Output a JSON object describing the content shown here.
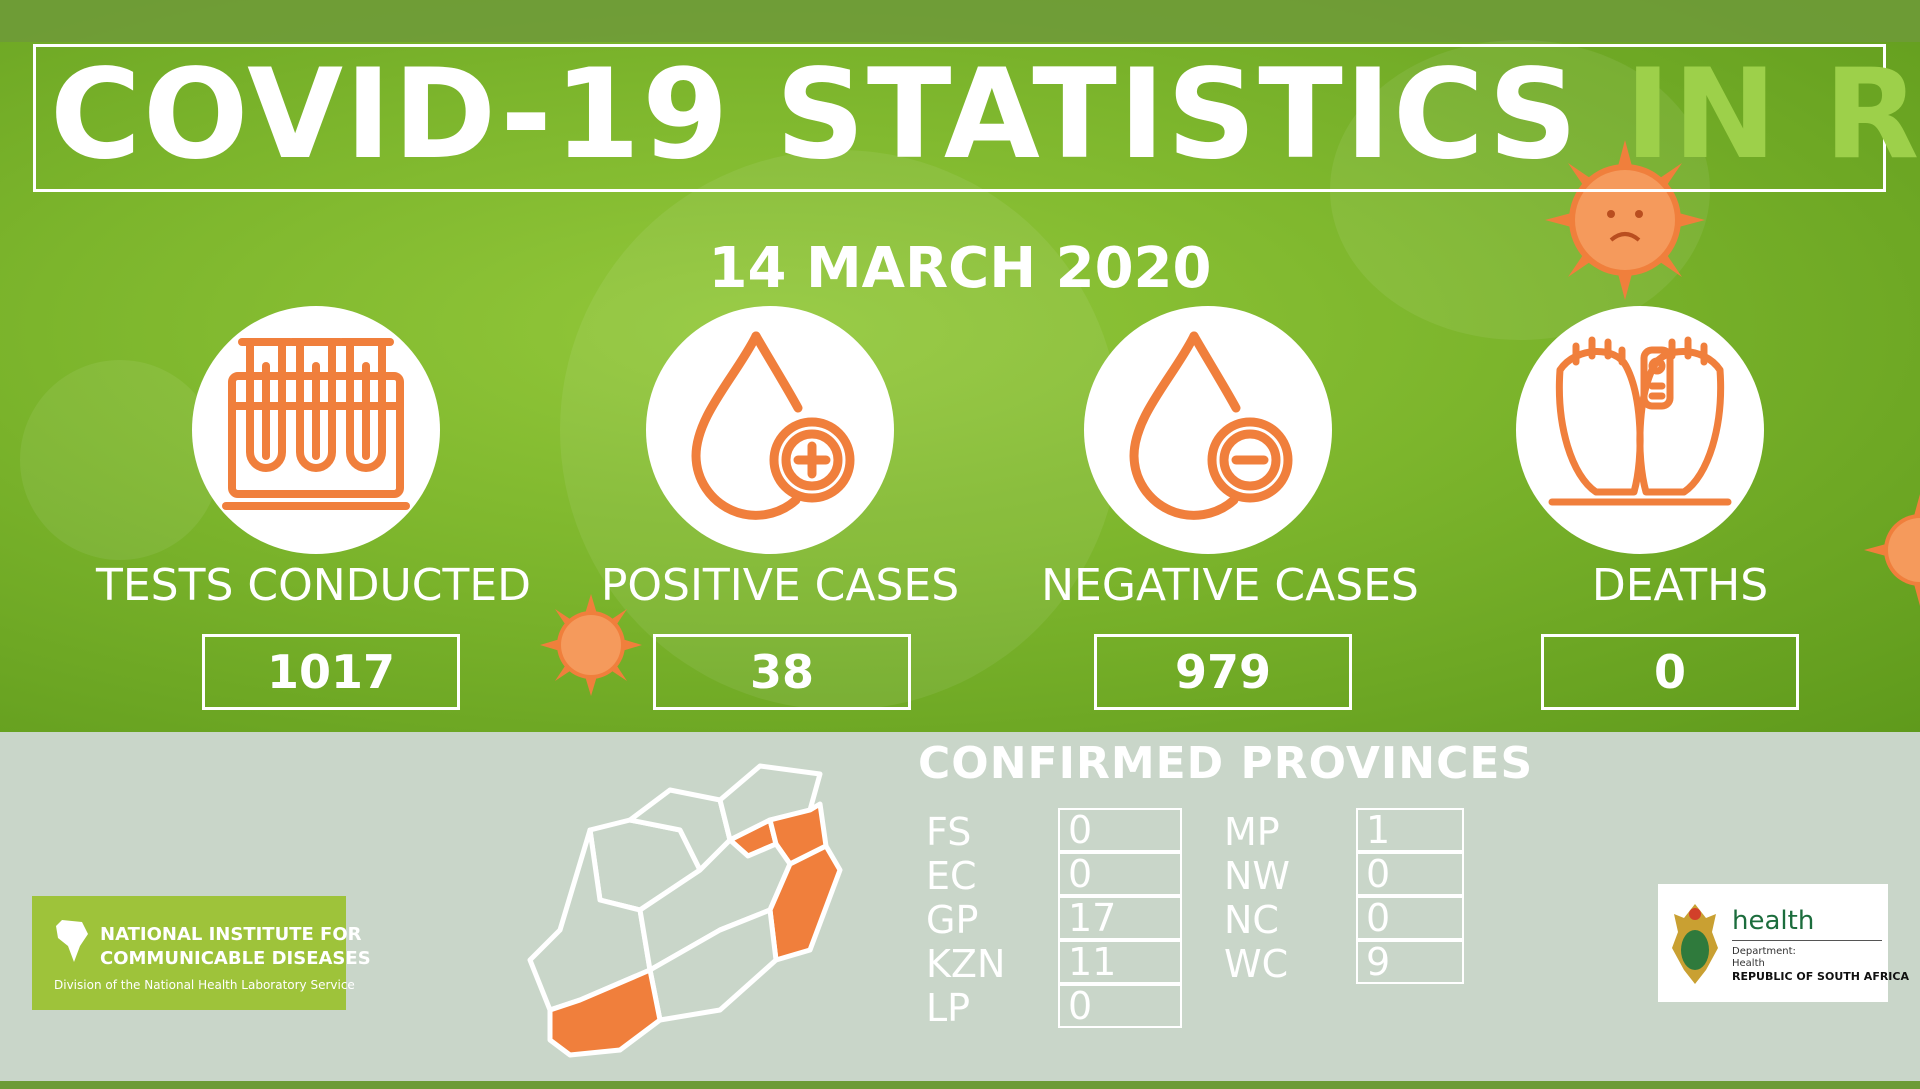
{
  "title": {
    "main": "COVID-19 STATISTICS",
    "accent": "IN RSA"
  },
  "date": "14 MARCH 2020",
  "stats": [
    {
      "label": "TESTS CONDUCTED",
      "value": "1017",
      "icon": "test-tubes-icon"
    },
    {
      "label": "POSITIVE CASES",
      "value": "38",
      "icon": "blood-drop-plus-icon"
    },
    {
      "label": "NEGATIVE CASES",
      "value": "979",
      "icon": "blood-drop-minus-icon"
    },
    {
      "label": "DEATHS",
      "value": "0",
      "icon": "feet-toe-tag-icon"
    }
  ],
  "provinces": {
    "title": "CONFIRMED PROVINCES",
    "left": [
      {
        "name": "FS",
        "value": "0"
      },
      {
        "name": "EC",
        "value": "0"
      },
      {
        "name": "GP",
        "value": "17"
      },
      {
        "name": "KZN",
        "value": "11"
      },
      {
        "name": "LP",
        "value": "0"
      }
    ],
    "right": [
      {
        "name": "MP",
        "value": "1"
      },
      {
        "name": "NW",
        "value": "0"
      },
      {
        "name": "NC",
        "value": "0"
      },
      {
        "name": "WC",
        "value": "9"
      }
    ]
  },
  "nicd_logo": {
    "line1": "NATIONAL INSTITUTE FOR",
    "line2": "COMMUNICABLE DISEASES",
    "line3": "Division of the National Health Laboratory Service"
  },
  "health_logo": {
    "word": "health",
    "dept1": "Department:",
    "dept2": "Health",
    "dept3": "REPUBLIC OF SOUTH AFRICA"
  },
  "colors": {
    "green_bg": "#7cb52c",
    "accent_green": "#9dd04a",
    "orange": "#f07f3c",
    "grey_panel": "#c9d6c9"
  }
}
